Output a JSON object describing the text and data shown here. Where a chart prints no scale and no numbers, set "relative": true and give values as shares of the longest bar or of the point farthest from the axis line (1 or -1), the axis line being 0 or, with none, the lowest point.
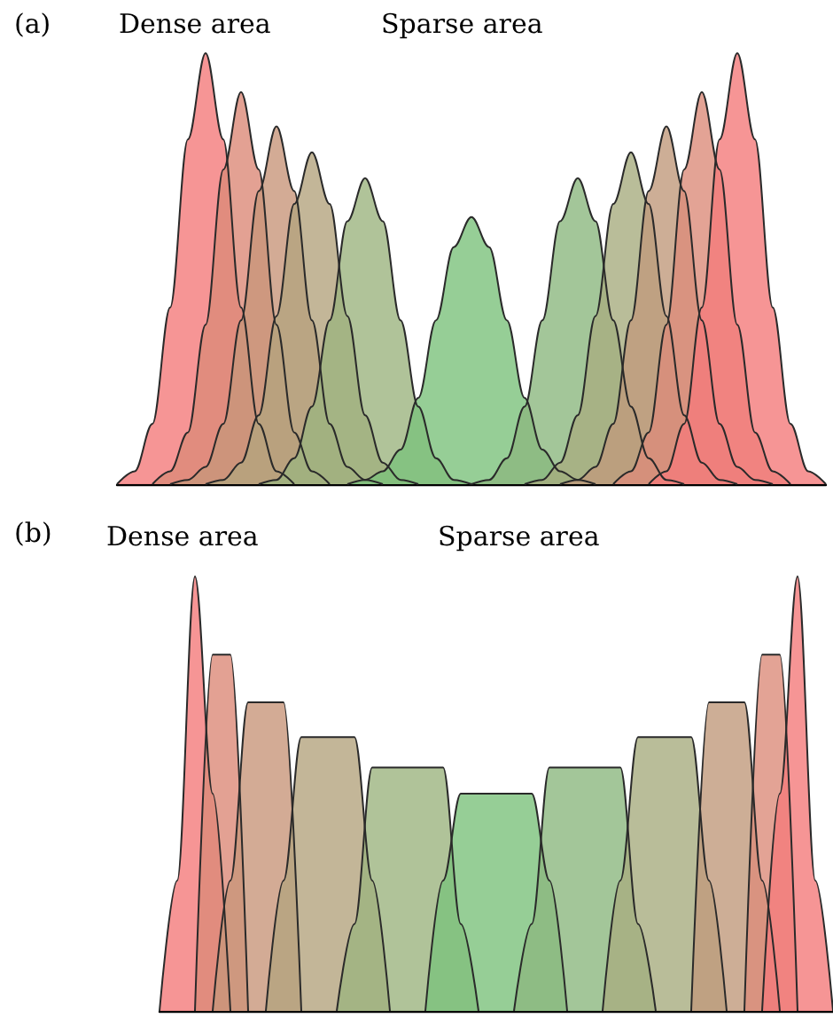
{
  "chart_data": [
    {
      "type": "area",
      "relative": true,
      "title": "(a)",
      "annotations": [
        "Dense area",
        "Sparse area"
      ],
      "categories": [
        null,
        null,
        null,
        null,
        null,
        null,
        null,
        null,
        null,
        null,
        null,
        null,
        null,
        null,
        null,
        null,
        null,
        null,
        null,
        null,
        null,
        null,
        null,
        null,
        null,
        null,
        null,
        null,
        null,
        null,
        null,
        null,
        null,
        null,
        null,
        null,
        null,
        null,
        null,
        null,
        null
      ],
      "series": [
        {
          "color": "#f47a7a",
          "values": [
            0,
            0.03,
            0.14,
            0.41,
            0.8,
            1,
            0.8,
            0.41,
            0.14,
            0.03,
            0,
            null,
            null,
            null,
            null,
            null,
            null,
            null,
            null,
            null,
            null,
            null,
            null,
            null,
            null,
            null,
            null,
            null,
            null,
            null,
            null,
            null,
            null,
            null,
            null,
            null,
            null,
            null,
            null,
            null,
            null
          ]
        },
        {
          "color": "#dc8a78",
          "values": [
            null,
            null,
            0,
            0.03,
            0.12,
            0.37,
            0.73,
            0.91,
            0.73,
            0.37,
            0.12,
            0.03,
            0,
            null,
            null,
            null,
            null,
            null,
            null,
            null,
            null,
            null,
            null,
            null,
            null,
            null,
            null,
            null,
            null,
            null,
            null,
            null,
            null,
            null,
            null,
            null,
            null,
            null,
            null,
            null,
            null
          ]
        },
        {
          "color": "#c8967a",
          "values": [
            null,
            null,
            null,
            0,
            0.01,
            0.04,
            0.14,
            0.38,
            0.68,
            0.83,
            0.68,
            0.38,
            0.14,
            0.04,
            0.01,
            0,
            null,
            null,
            null,
            null,
            null,
            null,
            null,
            null,
            null,
            null,
            null,
            null,
            null,
            null,
            null,
            null,
            null,
            null,
            null,
            null,
            null,
            null,
            null,
            null,
            null
          ]
        },
        {
          "color": "#b4a47e",
          "values": [
            null,
            null,
            null,
            null,
            null,
            0,
            0.01,
            0.05,
            0.16,
            0.39,
            0.65,
            0.77,
            0.65,
            0.39,
            0.16,
            0.05,
            0.01,
            0,
            null,
            null,
            null,
            null,
            null,
            null,
            null,
            null,
            null,
            null,
            null,
            null,
            null,
            null,
            null,
            null,
            null,
            null,
            null,
            null,
            null,
            null,
            null
          ]
        },
        {
          "color": "#9cb480",
          "values": [
            null,
            null,
            null,
            null,
            null,
            null,
            null,
            null,
            0,
            0.01,
            0.06,
            0.18,
            0.38,
            0.61,
            0.71,
            0.61,
            0.38,
            0.18,
            0.06,
            0.01,
            0,
            null,
            null,
            null,
            null,
            null,
            null,
            null,
            null,
            null,
            null,
            null,
            null,
            null,
            null,
            null,
            null,
            null,
            null,
            null,
            null
          ]
        },
        {
          "color": "#7cc27c",
          "values": [
            null,
            null,
            null,
            null,
            null,
            null,
            null,
            null,
            null,
            null,
            null,
            null,
            null,
            0,
            0.01,
            0.03,
            0.08,
            0.2,
            0.38,
            0.55,
            0.62,
            0.55,
            0.38,
            0.2,
            0.08,
            0.03,
            0.01,
            0,
            null,
            null,
            null,
            null,
            null,
            null,
            null,
            null,
            null,
            null,
            null,
            null,
            null
          ]
        },
        {
          "color": "#8cb880",
          "values": [
            null,
            null,
            null,
            null,
            null,
            null,
            null,
            null,
            null,
            null,
            null,
            null,
            null,
            null,
            null,
            null,
            null,
            null,
            null,
            null,
            0,
            0.01,
            0.06,
            0.18,
            0.38,
            0.61,
            0.71,
            0.61,
            0.38,
            0.18,
            0.06,
            0.01,
            0,
            null,
            null,
            null,
            null,
            null,
            null,
            null,
            null
          ]
        },
        {
          "color": "#a8ac80",
          "values": [
            null,
            null,
            null,
            null,
            null,
            null,
            null,
            null,
            null,
            null,
            null,
            null,
            null,
            null,
            null,
            null,
            null,
            null,
            null,
            null,
            null,
            null,
            null,
            0,
            0.01,
            0.05,
            0.16,
            0.39,
            0.65,
            0.77,
            0.65,
            0.39,
            0.16,
            0.05,
            0.01,
            0,
            null,
            null,
            null,
            null,
            null
          ]
        },
        {
          "color": "#c09a7c",
          "values": [
            null,
            null,
            null,
            null,
            null,
            null,
            null,
            null,
            null,
            null,
            null,
            null,
            null,
            null,
            null,
            null,
            null,
            null,
            null,
            null,
            null,
            null,
            null,
            null,
            null,
            0,
            0.01,
            0.04,
            0.14,
            0.38,
            0.68,
            0.83,
            0.68,
            0.38,
            0.14,
            0.04,
            0.01,
            0,
            null,
            null,
            null
          ]
        },
        {
          "color": "#dc8c7a",
          "values": [
            null,
            null,
            null,
            null,
            null,
            null,
            null,
            null,
            null,
            null,
            null,
            null,
            null,
            null,
            null,
            null,
            null,
            null,
            null,
            null,
            null,
            null,
            null,
            null,
            null,
            null,
            null,
            null,
            0,
            0.03,
            0.12,
            0.37,
            0.73,
            0.91,
            0.73,
            0.37,
            0.12,
            0.03,
            0,
            null,
            null
          ]
        },
        {
          "color": "#f47a7a",
          "values": [
            null,
            null,
            null,
            null,
            null,
            null,
            null,
            null,
            null,
            null,
            null,
            null,
            null,
            null,
            null,
            null,
            null,
            null,
            null,
            null,
            null,
            null,
            null,
            null,
            null,
            null,
            null,
            null,
            null,
            null,
            0,
            0.03,
            0.14,
            0.41,
            0.8,
            1,
            0.8,
            0.41,
            0.14,
            0.03,
            0
          ]
        }
      ]
    },
    {
      "type": "area",
      "relative": true,
      "title": "(b)",
      "annotations": [
        "Dense area",
        "Sparse area"
      ],
      "categories": [
        null,
        null,
        null,
        null,
        null,
        null,
        null,
        null,
        null,
        null,
        null,
        null,
        null,
        null,
        null,
        null,
        null,
        null,
        null,
        null,
        null,
        null,
        null,
        null,
        null,
        null,
        null,
        null,
        null,
        null,
        null,
        null,
        null,
        null,
        null,
        null,
        null,
        null,
        null
      ],
      "series": [
        {
          "color": "#f47a7a",
          "values": [
            0,
            0.3,
            1,
            0.5,
            0,
            null,
            null,
            null,
            null,
            null,
            null,
            null,
            null,
            null,
            null,
            null,
            null,
            null,
            null,
            null,
            null,
            null,
            null,
            null,
            null,
            null,
            null,
            null,
            null,
            null,
            null,
            null,
            null,
            null,
            null,
            null,
            null,
            null,
            null
          ]
        },
        {
          "color": "#dc8a78",
          "values": [
            null,
            null,
            0,
            0.82,
            0.82,
            0,
            null,
            null,
            null,
            null,
            null,
            null,
            null,
            null,
            null,
            null,
            null,
            null,
            null,
            null,
            null,
            null,
            null,
            null,
            null,
            null,
            null,
            null,
            null,
            null,
            null,
            null,
            null,
            null,
            null,
            null,
            null,
            null,
            null
          ]
        },
        {
          "color": "#c8967a",
          "values": [
            null,
            null,
            null,
            0,
            0.3,
            0.71,
            0.71,
            0.71,
            0,
            null,
            null,
            null,
            null,
            null,
            null,
            null,
            null,
            null,
            null,
            null,
            null,
            null,
            null,
            null,
            null,
            null,
            null,
            null,
            null,
            null,
            null,
            null,
            null,
            null,
            null,
            null,
            null,
            null,
            null
          ]
        },
        {
          "color": "#b4a47e",
          "values": [
            null,
            null,
            null,
            null,
            null,
            null,
            0,
            0.3,
            0.63,
            0.63,
            0.63,
            0.63,
            0.3,
            0,
            null,
            null,
            null,
            null,
            null,
            null,
            null,
            null,
            null,
            null,
            null,
            null,
            null,
            null,
            null,
            null,
            null,
            null,
            null,
            null,
            null,
            null,
            null,
            null,
            null
          ]
        },
        {
          "color": "#9cb480",
          "values": [
            null,
            null,
            null,
            null,
            null,
            null,
            null,
            null,
            null,
            null,
            0,
            0.2,
            0.56,
            0.56,
            0.56,
            0.56,
            0.56,
            0.2,
            0,
            null,
            null,
            null,
            null,
            null,
            null,
            null,
            null,
            null,
            null,
            null,
            null,
            null,
            null,
            null,
            null,
            null,
            null,
            null,
            null
          ]
        },
        {
          "color": "#7cc27c",
          "values": [
            null,
            null,
            null,
            null,
            null,
            null,
            null,
            null,
            null,
            null,
            null,
            null,
            null,
            null,
            null,
            0,
            0.3,
            0.5,
            0.5,
            0.5,
            0.5,
            0.5,
            0.3,
            0,
            null,
            null,
            null,
            null,
            null,
            null,
            null,
            null,
            null,
            null,
            null,
            null,
            null,
            null,
            null
          ]
        },
        {
          "color": "#8cb880",
          "values": [
            null,
            null,
            null,
            null,
            null,
            null,
            null,
            null,
            null,
            null,
            null,
            null,
            null,
            null,
            null,
            null,
            null,
            null,
            null,
            null,
            0,
            0.2,
            0.56,
            0.56,
            0.56,
            0.56,
            0.56,
            0.2,
            0,
            null,
            null,
            null,
            null,
            null,
            null,
            null,
            null,
            null,
            null
          ]
        },
        {
          "color": "#a8ac80",
          "values": [
            null,
            null,
            null,
            null,
            null,
            null,
            null,
            null,
            null,
            null,
            null,
            null,
            null,
            null,
            null,
            null,
            null,
            null,
            null,
            null,
            null,
            null,
            null,
            null,
            null,
            0,
            0.3,
            0.63,
            0.63,
            0.63,
            0.63,
            0.3,
            0,
            null,
            null,
            null,
            null,
            null,
            null
          ]
        },
        {
          "color": "#c09a7c",
          "values": [
            null,
            null,
            null,
            null,
            null,
            null,
            null,
            null,
            null,
            null,
            null,
            null,
            null,
            null,
            null,
            null,
            null,
            null,
            null,
            null,
            null,
            null,
            null,
            null,
            null,
            null,
            null,
            null,
            null,
            null,
            0,
            0.71,
            0.71,
            0.71,
            0.3,
            0,
            null,
            null,
            null
          ]
        },
        {
          "color": "#dc8c7a",
          "values": [
            null,
            null,
            null,
            null,
            null,
            null,
            null,
            null,
            null,
            null,
            null,
            null,
            null,
            null,
            null,
            null,
            null,
            null,
            null,
            null,
            null,
            null,
            null,
            null,
            null,
            null,
            null,
            null,
            null,
            null,
            null,
            null,
            null,
            0,
            0.82,
            0.82,
            0,
            null,
            null
          ]
        },
        {
          "color": "#f47a7a",
          "values": [
            null,
            null,
            null,
            null,
            null,
            null,
            null,
            null,
            null,
            null,
            null,
            null,
            null,
            null,
            null,
            null,
            null,
            null,
            null,
            null,
            null,
            null,
            null,
            null,
            null,
            null,
            null,
            null,
            null,
            null,
            null,
            null,
            null,
            null,
            0,
            0.5,
            1,
            0.3,
            0
          ]
        }
      ]
    }
  ]
}
